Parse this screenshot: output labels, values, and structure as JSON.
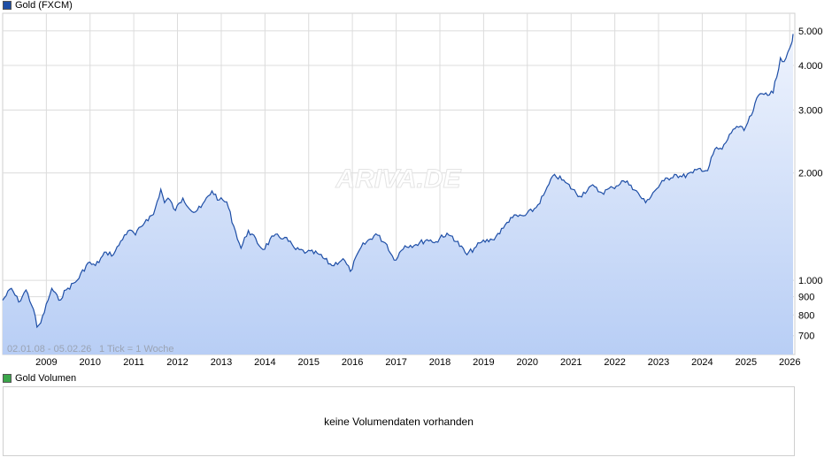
{
  "header": {
    "legend_label": "Gold (FXCM)",
    "legend_color": "#1e4ea6"
  },
  "volume": {
    "legend_label": "Gold Volumen",
    "legend_color": "#3aa64a",
    "message": "keine Volumendaten vorhanden"
  },
  "watermark": "ARIVA.DE",
  "footer_info": {
    "date_range": "02.01.08 - 05.02.26",
    "tick_info": "1 Tick = 1 Woche"
  },
  "colors": {
    "line": "#1e4ea6",
    "fill_top": "#eef3fd",
    "fill_bottom": "#b8cef5",
    "grid": "#dcdcdc"
  },
  "chart_data": {
    "type": "area",
    "title": "Gold (FXCM)",
    "y_scale": "log",
    "ylim": [
      620,
      5600
    ],
    "y_ticks": [
      700,
      800,
      900,
      1000,
      2000,
      3000,
      4000,
      5000
    ],
    "y_tick_labels": [
      "700",
      "800",
      "900",
      "1.000",
      "2.000",
      "3.000",
      "4.000",
      "5.000"
    ],
    "x_ticks": [
      2009,
      2010,
      2011,
      2012,
      2013,
      2014,
      2015,
      2016,
      2017,
      2018,
      2019,
      2020,
      2021,
      2022,
      2023,
      2024,
      2025,
      2026
    ],
    "x_range": [
      "2008-01-02",
      "2026-02-05"
    ],
    "grid": true,
    "series": [
      {
        "name": "Gold (FXCM)",
        "x": [
          "2008-01",
          "2008-03",
          "2008-05",
          "2008-07",
          "2008-09",
          "2008-10",
          "2008-11",
          "2009-01",
          "2009-02",
          "2009-04",
          "2009-06",
          "2009-09",
          "2009-12",
          "2010-02",
          "2010-05",
          "2010-07",
          "2010-10",
          "2010-12",
          "2011-01",
          "2011-04",
          "2011-06",
          "2011-08",
          "2011-09",
          "2011-10",
          "2011-12",
          "2012-02",
          "2012-05",
          "2012-07",
          "2012-10",
          "2012-12",
          "2013-02",
          "2013-04",
          "2013-06",
          "2013-08",
          "2013-12",
          "2014-03",
          "2014-06",
          "2014-09",
          "2014-12",
          "2015-03",
          "2015-07",
          "2015-10",
          "2015-12",
          "2016-03",
          "2016-07",
          "2016-10",
          "2016-12",
          "2017-03",
          "2017-06",
          "2017-09",
          "2017-12",
          "2018-01",
          "2018-04",
          "2018-08",
          "2018-10",
          "2018-12",
          "2019-03",
          "2019-06",
          "2019-08",
          "2019-12",
          "2020-03",
          "2020-05",
          "2020-08",
          "2020-11",
          "2021-03",
          "2021-06",
          "2021-09",
          "2021-12",
          "2022-03",
          "2022-05",
          "2022-09",
          "2022-11",
          "2023-02",
          "2023-05",
          "2023-07",
          "2023-10",
          "2023-12",
          "2024-02",
          "2024-04",
          "2024-06",
          "2024-09",
          "2024-10",
          "2024-12",
          "2025-02",
          "2025-04",
          "2025-06",
          "2025-08",
          "2025-10",
          "2025-11",
          "2025-12",
          "2026-01",
          "2026-02"
        ],
        "y": [
          880,
          950,
          870,
          940,
          830,
          740,
          760,
          880,
          950,
          880,
          940,
          1000,
          1120,
          1100,
          1200,
          1180,
          1340,
          1380,
          1340,
          1480,
          1530,
          1800,
          1650,
          1700,
          1570,
          1700,
          1550,
          1600,
          1780,
          1680,
          1660,
          1420,
          1230,
          1380,
          1220,
          1330,
          1320,
          1220,
          1200,
          1190,
          1100,
          1150,
          1060,
          1240,
          1350,
          1260,
          1140,
          1250,
          1260,
          1300,
          1280,
          1340,
          1330,
          1180,
          1230,
          1280,
          1300,
          1400,
          1500,
          1520,
          1600,
          1730,
          1980,
          1880,
          1720,
          1840,
          1760,
          1820,
          1900,
          1850,
          1650,
          1760,
          1900,
          1980,
          1950,
          2000,
          2060,
          2030,
          2330,
          2330,
          2650,
          2700,
          2630,
          2900,
          3300,
          3350,
          3350,
          4200,
          4100,
          4350,
          4600,
          4900
        ]
      }
    ]
  }
}
